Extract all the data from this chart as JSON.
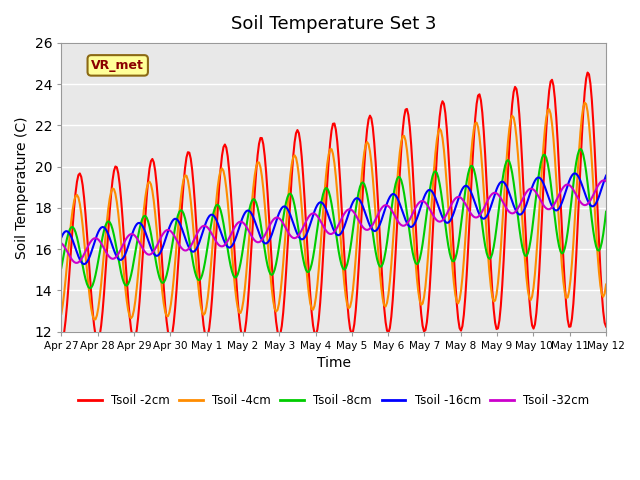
{
  "title": "Soil Temperature Set 3",
  "xlabel": "Time",
  "ylabel": "Soil Temperature (C)",
  "ylim": [
    12,
    26
  ],
  "yticks": [
    12,
    14,
    16,
    18,
    20,
    22,
    24,
    26
  ],
  "annotation": "VR_met",
  "background_inner": "#e8e8e8",
  "background_outer": "#ffffff",
  "series_colors": [
    "#ff0000",
    "#ff8c00",
    "#00cc00",
    "#0000ff",
    "#cc00cc"
  ],
  "series_labels": [
    "Tsoil -2cm",
    "Tsoil -4cm",
    "Tsoil -8cm",
    "Tsoil -16cm",
    "Tsoil -32cm"
  ],
  "xtick_labels": [
    "Apr 27",
    "Apr 28",
    "Apr 29",
    "Apr 30",
    "May 1",
    "May 2",
    "May 3",
    "May 4",
    "May 5",
    "May 6",
    "May 7",
    "May 8",
    "May 9",
    "May 10",
    "May 11",
    "May 12"
  ],
  "grid_color": "#ffffff",
  "line_width": 1.5
}
